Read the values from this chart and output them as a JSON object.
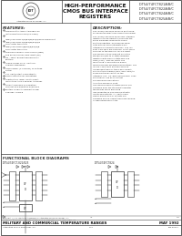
{
  "bg_color": "#ffffff",
  "border_color": "#444444",
  "title_main": "HIGH-PERFORMANCE\nCMOS BUS INTERFACE\nREGISTERS",
  "part_numbers": "IDT54/74FCT821A/B/C\nIDT54/74FCT822A/B/C\nIDT54/74FCT824A/B/C\nIDT54/74FCT825A/B/C",
  "logo_text": "Integrated Device Technology, Inc.",
  "features_title": "FEATURES:",
  "features": [
    "Equivalent to AMD's Am29861-20 (octal registers in plus/FCT-825), speed and output drive over 50% better performance and voltage supply extended",
    "IDT54/74FCT821-B/B/B-B/B/B-B/B/B254-equivalent CMOS FCT pinout",
    "IDT54/74FCT821-B/B/B-B/B/B-B/B/B 25% faster than FAST",
    "IDT54/74FCT821C/B/B-B/B/B-B/B/B 40% faster than FAST",
    "Buffered common clock enable (BEN) and asynchronous clear input (OE)",
    "No - 48mA guaranteed and 8CLA emitters",
    "Clamp diodes on all inputs for ringing suppression",
    "CMOS power (2 versions) of voltage control",
    "TTL input/output compatibility",
    "CMOS output level compatible",
    "Substantially lower input current levels than AMD's popular Am29861 series (6uA max.)",
    "Product available in Radiation Tolerant and Radiation Enhanced versions",
    "Military product compliant D-MB, STD-883, Class B"
  ],
  "description_title": "DESCRIPTION:",
  "description_para1": "The IDT54/74FCT800 series is built using an advanced dual track CMOS technology.",
  "description_para2": "The IDT54/74FCT800 series bus interface registers are designed to eliminate the same packages required to buffer existing registers, and provide serial data with an order integrated bus interface including technology. The IDT 8-bit 74FCT821 are buffered, 10-bit word versions of the popular 7474 D-input. The 4B IDT-4-to-B flags out all of the standard inputs to bi-state buffered registers with block 0-state BFS and clear (CLR) - also for parity bus monitoring in applications where microprocessor-programmed systems. The IDT-54-74FCT-824 and 825 achieve independent gain of three 820 current plus multiple enables (OE1, OE2, OE3) to allow multilevel control of the interface, e.g., CS, BWa and ROMCE. They are ideal for use as on-output pin-decoding applications.",
  "description_para3": "All in the IDT54FCT 8-bit high-performance interface family are designed from the standard transistor technology while providing low-capacitance bus loading at both inputs and outputs. All inputs have clamp diodes and all outputs are designed for low-capacitance bus loading in high-impedance state.",
  "functional_title": "FUNCTIONAL BLOCK DIAGRAMS",
  "functional_subtitle_left": "IDT54/74FCT-822/825",
  "functional_subtitle_right": "IDT54/74FCT824",
  "footer_copyright": "Copyright (c) is a registered trademark of Integrated Device Technology, Inc.",
  "footer_doc_left": "Under U.S. 00-000000 is registered trademark of Integrated Device Technology, Inc.",
  "footer_bottom_left": "MILITARY AND COMMERCIAL TEMPERATURE RANGES",
  "footer_bottom_right": "MAY 1992",
  "footer_page": "1-46",
  "footer_partno": "890-00001",
  "text_color": "#333333",
  "dark_color": "#111111"
}
